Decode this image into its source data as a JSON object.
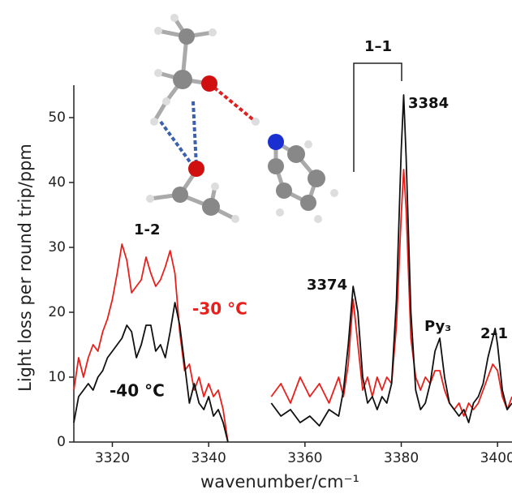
{
  "chart_data": {
    "type": "line",
    "xlabel": "wavenumber/cm⁻¹",
    "ylabel": "Light loss per round trip/ppm",
    "xlim": [
      3312,
      3403
    ],
    "xticks": [
      3320,
      3340,
      3360,
      3380,
      3400
    ],
    "ylim": [
      0,
      55
    ],
    "yticks": [
      0,
      10,
      20,
      30,
      40,
      50
    ],
    "series": [
      {
        "name": "-30 °C",
        "color": "#e8201c",
        "x": [
          3312,
          3313,
          3314,
          3315,
          3316,
          3317,
          3318,
          3319,
          3320,
          3321,
          3322,
          3323,
          3324,
          3325,
          3326,
          3327,
          3328,
          3329,
          3330,
          3331,
          3332,
          3333,
          3334,
          3335,
          3336,
          3337,
          3338,
          3339,
          3340,
          3341,
          3342,
          3343,
          3344,
          3348,
          3353,
          3355,
          3357,
          3359,
          3361,
          3363,
          3365,
          3367,
          3368,
          3369,
          3370,
          3371,
          3372,
          3373,
          3374,
          3375,
          3376,
          3377,
          3378,
          3379,
          3380,
          3380.5,
          3381,
          3382,
          3383,
          3384,
          3385,
          3386,
          3387,
          3388,
          3389,
          3390,
          3391,
          3392,
          3393,
          3394,
          3395,
          3396,
          3397,
          3398,
          3399,
          3400,
          3401,
          3402,
          3403
        ],
        "values": [
          8,
          13,
          10,
          13,
          15,
          14,
          17,
          19,
          22,
          26,
          30.5,
          28,
          23,
          24,
          25,
          28.5,
          26,
          24,
          25,
          27,
          29.5,
          26,
          17,
          11,
          12,
          8,
          10,
          7,
          9,
          7,
          8,
          5,
          0,
          null,
          7,
          9,
          6,
          10,
          7,
          9,
          6,
          10,
          7,
          12,
          22,
          15,
          8,
          10,
          7,
          10,
          8,
          10,
          9,
          18,
          35,
          42,
          36,
          16,
          10,
          8,
          10,
          9,
          11,
          11,
          8,
          6,
          5,
          6,
          4,
          6,
          5,
          6,
          8,
          10,
          12,
          11,
          7,
          5,
          7
        ]
      },
      {
        "name": "-40 °C",
        "color": "#111111",
        "x": [
          3312,
          3313,
          3314,
          3315,
          3316,
          3317,
          3318,
          3319,
          3320,
          3321,
          3322,
          3323,
          3324,
          3325,
          3326,
          3327,
          3328,
          3329,
          3330,
          3331,
          3332,
          3333,
          3334,
          3335,
          3336,
          3337,
          3338,
          3339,
          3340,
          3341,
          3342,
          3343,
          3344,
          3348,
          3353,
          3355,
          3357,
          3359,
          3361,
          3363,
          3365,
          3367,
          3368,
          3369,
          3370,
          3371,
          3372,
          3373,
          3374,
          3375,
          3376,
          3377,
          3378,
          3379,
          3380,
          3380.5,
          3381,
          3382,
          3383,
          3384,
          3385,
          3386,
          3387,
          3388,
          3389,
          3390,
          3391,
          3392,
          3393,
          3394,
          3395,
          3396,
          3397,
          3398,
          3399,
          3399.5,
          3400,
          3401,
          3402,
          3403
        ],
        "values": [
          3,
          7,
          8,
          9,
          8,
          10,
          11,
          13,
          14,
          15,
          16,
          18,
          17,
          13,
          15,
          18,
          18,
          14,
          15,
          13,
          17,
          21.5,
          18,
          12,
          6,
          9,
          6,
          5,
          7,
          4,
          5,
          3,
          0,
          null,
          6,
          4,
          5,
          3,
          4,
          2.5,
          5,
          4,
          8,
          15,
          24,
          20,
          10,
          6,
          7,
          5,
          7,
          6,
          9,
          22,
          45,
          53.5,
          44,
          20,
          8,
          5,
          6,
          9,
          14,
          16,
          10,
          6,
          5,
          4,
          5,
          3,
          6,
          7,
          9,
          13,
          16,
          17.5,
          15,
          8,
          5,
          6
        ]
      }
    ],
    "annotations": [
      "1–1",
      "3384",
      "3374",
      "Py₃",
      "2–1",
      "1-2"
    ]
  }
}
